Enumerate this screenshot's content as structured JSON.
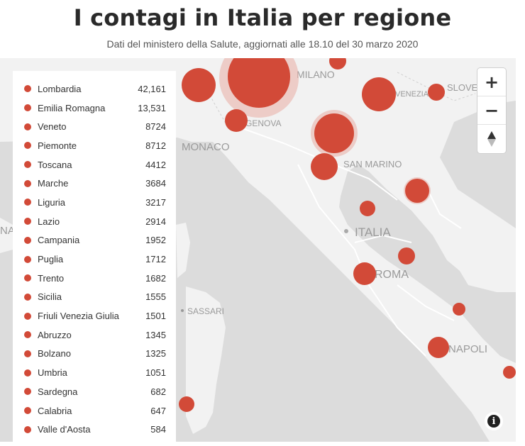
{
  "title": "I contagi in Italia per regione",
  "subtitle": "Dati del ministero della Salute, aggiornati alle 18.10 del 30 marzo 2020",
  "legend": [
    {
      "name": "Lombardia",
      "value": "42,161"
    },
    {
      "name": "Emilia Romagna",
      "value": "13,531"
    },
    {
      "name": "Veneto",
      "value": "8724"
    },
    {
      "name": "Piemonte",
      "value": "8712"
    },
    {
      "name": "Toscana",
      "value": "4412"
    },
    {
      "name": "Marche",
      "value": "3684"
    },
    {
      "name": "Liguria",
      "value": "3217"
    },
    {
      "name": "Lazio",
      "value": "2914"
    },
    {
      "name": "Campania",
      "value": "1952"
    },
    {
      "name": "Puglia",
      "value": "1712"
    },
    {
      "name": "Trento",
      "value": "1682"
    },
    {
      "name": "Sicilia",
      "value": "1555"
    },
    {
      "name": "Friuli Venezia Giulia",
      "value": "1501"
    },
    {
      "name": "Abruzzo",
      "value": "1345"
    },
    {
      "name": "Bolzano",
      "value": "1325"
    },
    {
      "name": "Umbria",
      "value": "1051"
    },
    {
      "name": "Sardegna",
      "value": "682"
    },
    {
      "name": "Calabria",
      "value": "647"
    },
    {
      "name": "Valle d'Aosta",
      "value": "584"
    }
  ],
  "map_labels": {
    "monaco": "MONACO",
    "genova": "GENOVA",
    "san_marino": "SAN MARINO",
    "italia": "ITALIA",
    "roma": "ROMA",
    "sassari": "SASSARI",
    "napoli": "NAPOLI",
    "venezia": "VENEZIA",
    "slovenia": "SLOVEN",
    "milano": "MILANO",
    "edge_left": "NA"
  },
  "controls": {
    "zoom_in": "+",
    "zoom_out": "−",
    "compass": "▲",
    "info": "i"
  },
  "colors": {
    "bubble": "#d24a38",
    "land": "#f2f2f2",
    "sea": "#dcdcdc"
  }
}
